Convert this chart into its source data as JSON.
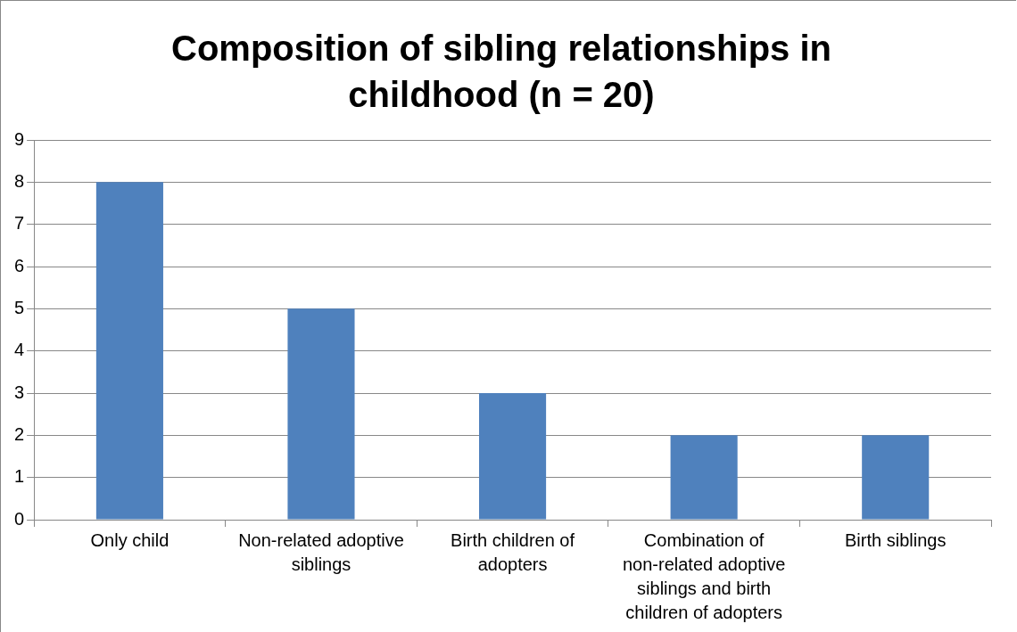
{
  "chart_data": {
    "type": "bar",
    "title": "Composition of sibling relationships in childhood (n = 20)",
    "categories": [
      "Only child",
      "Non-related adoptive siblings",
      "Birth children of adopters",
      "Combination of non-related adoptive siblings and birth children of adopters",
      "Birth siblings"
    ],
    "values": [
      8,
      5,
      3,
      2,
      2
    ],
    "color": "#4f81bd",
    "ylim": [
      0,
      9
    ],
    "yticks": [
      0,
      1,
      2,
      3,
      4,
      5,
      6,
      7,
      8,
      9
    ],
    "grid": "y",
    "legend": false
  }
}
